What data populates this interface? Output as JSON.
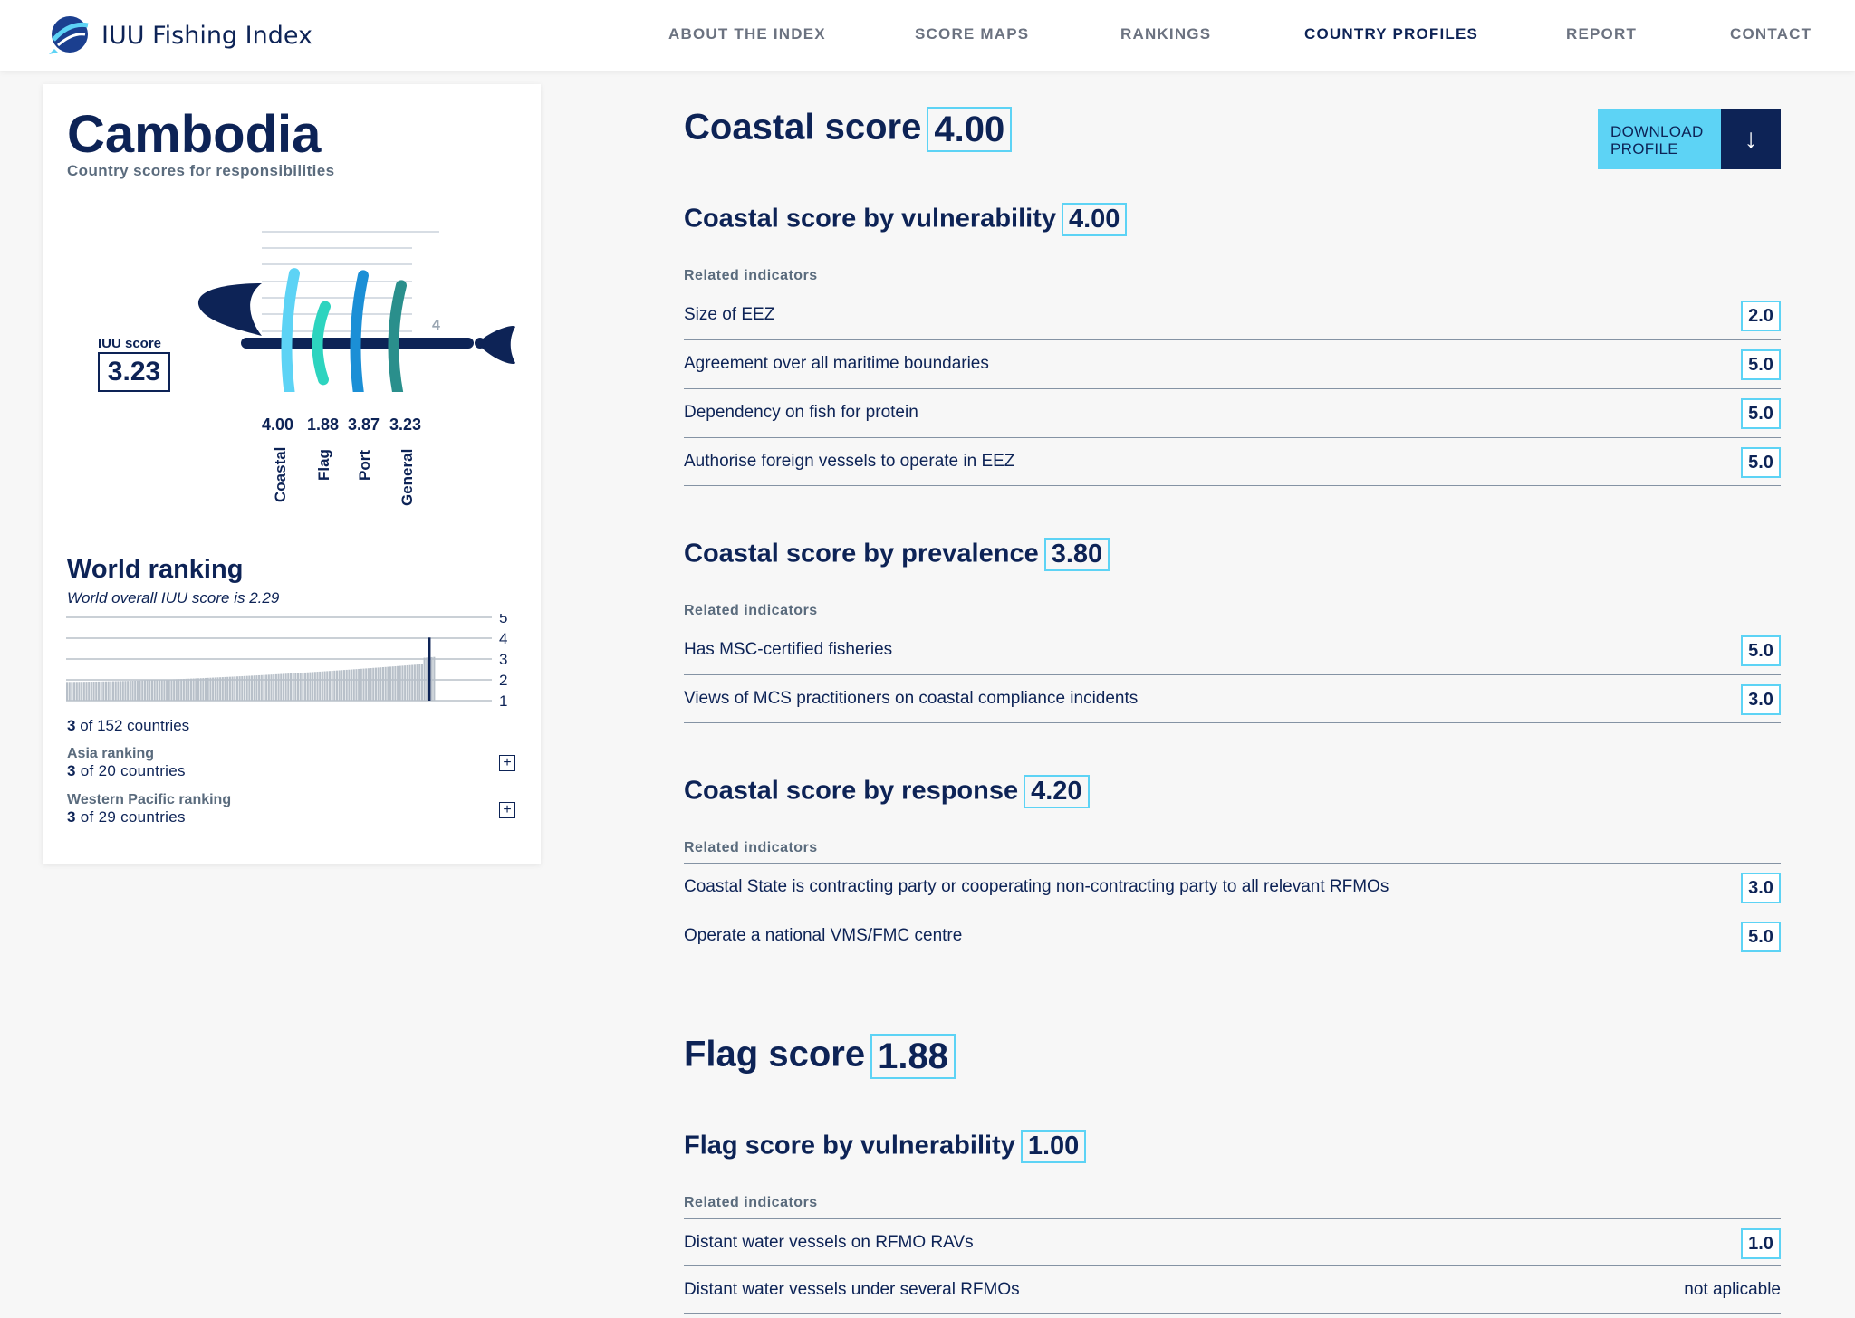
{
  "header": {
    "logo_text": "IUU Fishing Index",
    "nav": [
      "ABOUT THE INDEX",
      "SCORE MAPS",
      "RANKINGS",
      "COUNTRY PROFILES",
      "REPORT",
      "CONTACT"
    ],
    "active_nav": "COUNTRY PROFILES"
  },
  "profile": {
    "country": "Cambodia",
    "subtitle": "Country scores for responsibilities",
    "iuu_label": "IUU score",
    "iuu_score": "3.23",
    "fish_axis_max": "4",
    "categories": [
      {
        "name": "Coastal",
        "value": "4.00",
        "score": 4.0,
        "color": "#5dd3f5"
      },
      {
        "name": "Flag",
        "value": "1.88",
        "score": 1.88,
        "color": "#2dd4bf"
      },
      {
        "name": "Port",
        "value": "3.87",
        "score": 3.87,
        "color": "#1b8fd6"
      },
      {
        "name": "General",
        "value": "3.23",
        "score": 3.23,
        "color": "#2a8f8c"
      }
    ]
  },
  "world_ranking": {
    "title": "World ranking",
    "subtitle": "World overall IUU score is 2.29",
    "axis_ticks": [
      "5",
      "4",
      "3",
      "2",
      "1"
    ],
    "country_rank": 3,
    "total": 152,
    "count_bold": "3",
    "count_rest": " of 152 countries",
    "regional": [
      {
        "label": "Asia ranking",
        "count_bold": "3",
        "count_rest": " of 20 countries"
      },
      {
        "label": "Western Pacific ranking",
        "count_bold": "3",
        "count_rest": " of 29 countries"
      }
    ]
  },
  "download": {
    "label_line1": "DOWNLOAD",
    "label_line2": "PROFILE"
  },
  "related_label": "Related indicators",
  "coastal": {
    "title": "Coastal score",
    "score": "4.00",
    "sections": [
      {
        "title": "Coastal score by vulnerability",
        "score": "4.00",
        "indicators": [
          {
            "label": "Size of EEZ",
            "value": "2.0"
          },
          {
            "label": "Agreement over all maritime boundaries",
            "value": "5.0"
          },
          {
            "label": "Dependency on fish for protein",
            "value": "5.0"
          },
          {
            "label": "Authorise foreign vessels to operate in EEZ",
            "value": "5.0"
          }
        ]
      },
      {
        "title": "Coastal score by prevalence",
        "score": "3.80",
        "indicators": [
          {
            "label": "Has MSC-certified fisheries",
            "value": "5.0"
          },
          {
            "label": "Views of MCS practitioners on coastal compliance incidents",
            "value": "3.0"
          }
        ]
      },
      {
        "title": "Coastal score by response",
        "score": "4.20",
        "indicators": [
          {
            "label": "Coastal State is contracting party or cooperating non-contracting party to all relevant RFMOs",
            "value": "3.0"
          },
          {
            "label": "Operate a national VMS/FMC centre",
            "value": "5.0"
          }
        ]
      }
    ]
  },
  "flag": {
    "title": "Flag score",
    "score": "1.88",
    "sections": [
      {
        "title": "Flag score by vulnerability",
        "score": "1.00",
        "indicators": [
          {
            "label": "Distant water vessels on RFMO RAVs",
            "value": "1.0"
          },
          {
            "label": "Distant water vessels under several RFMOs",
            "value": "not aplicable"
          }
        ]
      }
    ]
  },
  "colors": {
    "navy": "#0d2356",
    "cyan": "#5dd3f5",
    "teal": "#2dd4bf",
    "blue": "#1b8fd6",
    "darkteal": "#2a8f8c"
  }
}
